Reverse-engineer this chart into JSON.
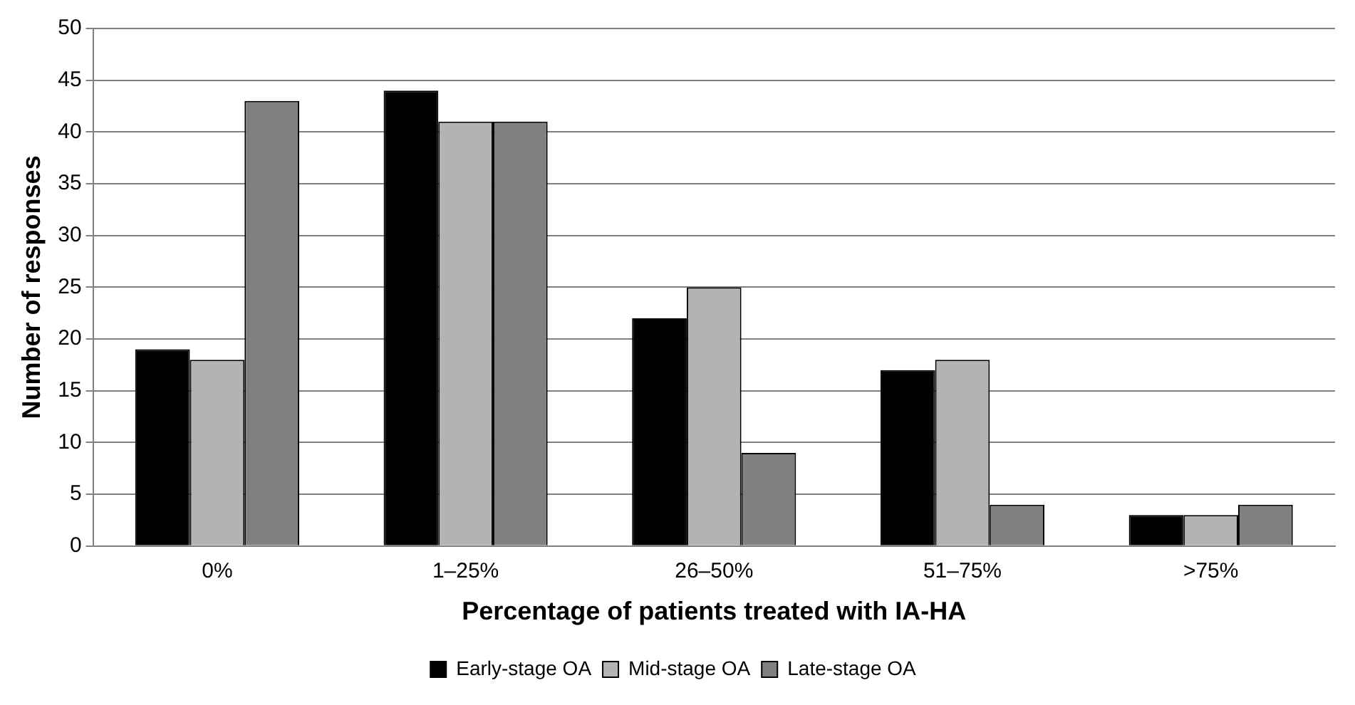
{
  "chart_data": {
    "type": "bar",
    "xlabel": "Percentage of patients treated with IA-HA",
    "ylabel": "Number of responses",
    "categories": [
      "0%",
      "1–25%",
      "26–50%",
      "51–75%",
      ">75%"
    ],
    "series": [
      {
        "name": "Early-stage OA",
        "color": "#000000",
        "values": [
          19,
          44,
          22,
          17,
          3
        ]
      },
      {
        "name": "Mid-stage OA",
        "color": "#b3b3b3",
        "values": [
          18,
          41,
          25,
          18,
          3
        ]
      },
      {
        "name": "Late-stage OA",
        "color": "#808080",
        "values": [
          43,
          41,
          9,
          4,
          4
        ]
      }
    ],
    "ylim": [
      0,
      50
    ],
    "yticks": [
      0,
      5,
      10,
      15,
      20,
      25,
      30,
      35,
      40,
      45,
      50
    ],
    "grid": "y",
    "legend": "bottom"
  }
}
